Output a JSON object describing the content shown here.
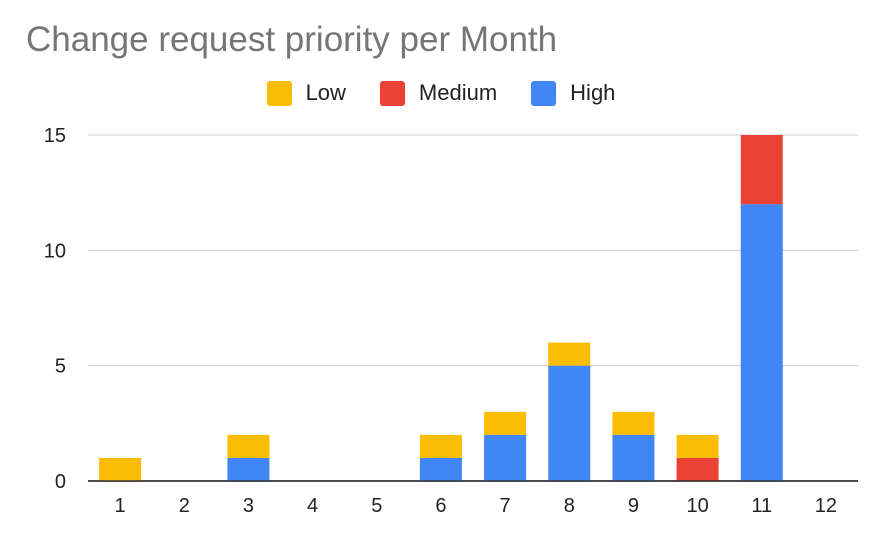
{
  "chart_data": {
    "type": "bar",
    "stacked": true,
    "title": "Change request priority per Month",
    "xlabel": "",
    "ylabel": "",
    "categories": [
      "1",
      "2",
      "3",
      "4",
      "5",
      "6",
      "7",
      "8",
      "9",
      "10",
      "11",
      "12"
    ],
    "series": [
      {
        "name": "High",
        "color": "#4285f4",
        "values": [
          0,
          0,
          1,
          0,
          0,
          1,
          2,
          5,
          2,
          0,
          12,
          0
        ]
      },
      {
        "name": "Medium",
        "color": "#ea4335",
        "values": [
          0,
          0,
          0,
          0,
          0,
          0,
          0,
          0,
          0,
          1,
          3,
          0
        ]
      },
      {
        "name": "Low",
        "color": "#fbbc04",
        "values": [
          1,
          0,
          1,
          0,
          0,
          1,
          1,
          1,
          1,
          1,
          0,
          0
        ]
      }
    ],
    "legend_order": [
      "Low",
      "Medium",
      "High"
    ],
    "ylim": [
      0,
      15
    ],
    "yticks": [
      "0",
      "5",
      "10",
      "15"
    ],
    "grid": true,
    "legend_position": "top"
  }
}
